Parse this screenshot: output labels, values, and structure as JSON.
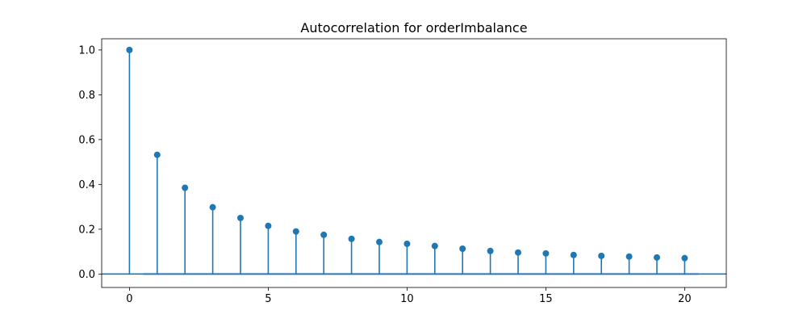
{
  "chart_data": {
    "type": "stem",
    "title": "Autocorrelation for orderImbalance",
    "xlabel": "",
    "ylabel": "",
    "xlim": [
      -1,
      21.5
    ],
    "ylim": [
      -0.06,
      1.05
    ],
    "xticks": [
      0,
      5,
      10,
      15,
      20
    ],
    "yticks": [
      0.0,
      0.2,
      0.4,
      0.6,
      0.8,
      1.0
    ],
    "ytick_labels": [
      "0.0",
      "0.2",
      "0.4",
      "0.6",
      "0.8",
      "1.0"
    ],
    "grid": false,
    "lags": [
      0,
      1,
      2,
      3,
      4,
      5,
      6,
      7,
      8,
      9,
      10,
      11,
      12,
      13,
      14,
      15,
      16,
      17,
      18,
      19,
      20
    ],
    "values": [
      1.0,
      0.532,
      0.385,
      0.298,
      0.25,
      0.215,
      0.19,
      0.175,
      0.157,
      0.143,
      0.135,
      0.125,
      0.113,
      0.103,
      0.096,
      0.092,
      0.085,
      0.081,
      0.078,
      0.074,
      0.071
    ],
    "baseline": 0.0,
    "confidence_band": [
      0.006,
      -0.006
    ],
    "colors": {
      "stem": "#1f77b4",
      "band": "#aec7e8",
      "baseline": "#1f77b4"
    }
  }
}
